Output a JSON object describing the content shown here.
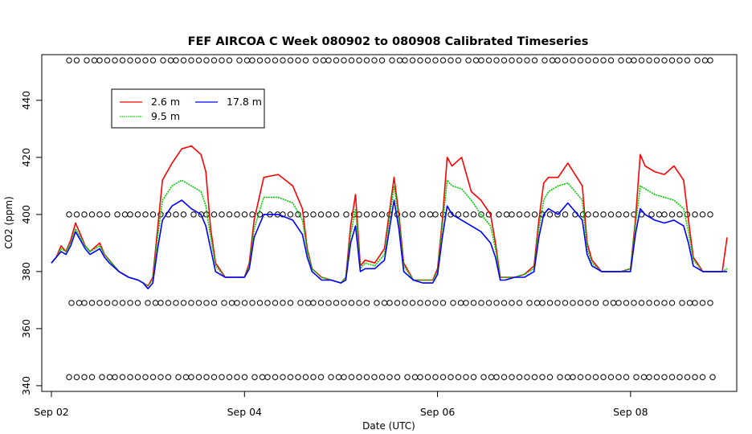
{
  "chart_data": {
    "type": "line",
    "title": "FEF AIRCOA C  Week 080902 to 080908  Calibrated Timeseries",
    "xlabel": "Date (UTC)",
    "ylabel": "CO2 (ppm)",
    "x_unit": "days",
    "xlim": [
      -0.1,
      7.1
    ],
    "ylim": [
      338,
      456
    ],
    "x_ticks": [
      {
        "value": 0,
        "label": "Sep 02"
      },
      {
        "value": 2,
        "label": "Sep 04"
      },
      {
        "value": 4,
        "label": "Sep 06"
      },
      {
        "value": 6,
        "label": "Sep 08"
      }
    ],
    "y_ticks": [
      340,
      360,
      380,
      400,
      420,
      440
    ],
    "legend_position": "top-left",
    "legend": [
      {
        "name": "2.6 m",
        "color": "#ff0000"
      },
      {
        "name": "9.5 m",
        "color": "#00cc00"
      },
      {
        "name": "17.8 m",
        "color": "#0000ff"
      }
    ],
    "series": [
      {
        "name": "2.6 m",
        "color": "#ff0000",
        "x": [
          0,
          0.05,
          0.1,
          0.15,
          0.2,
          0.25,
          0.3,
          0.35,
          0.4,
          0.5,
          0.55,
          0.6,
          0.7,
          0.8,
          0.9,
          0.95,
          1.0,
          1.05,
          1.1,
          1.15,
          1.25,
          1.35,
          1.45,
          1.55,
          1.6,
          1.65,
          1.7,
          1.8,
          1.9,
          2.0,
          2.05,
          2.1,
          2.2,
          2.35,
          2.5,
          2.6,
          2.65,
          2.7,
          2.8,
          2.9,
          3.0,
          3.05,
          3.1,
          3.15,
          3.2,
          3.25,
          3.35,
          3.45,
          3.55,
          3.6,
          3.65,
          3.75,
          3.85,
          3.95,
          4.0,
          4.05,
          4.1,
          4.15,
          4.25,
          4.35,
          4.45,
          4.55,
          4.6,
          4.65,
          4.7,
          4.8,
          4.9,
          5.0,
          5.05,
          5.1,
          5.15,
          5.25,
          5.35,
          5.5,
          5.55,
          5.6,
          5.7,
          5.8,
          5.9,
          6.0,
          6.05,
          6.1,
          6.15,
          6.25,
          6.35,
          6.45,
          6.55,
          6.6,
          6.65,
          6.75,
          6.85,
          6.95,
          7.0
        ],
        "y": [
          383,
          385,
          389,
          387,
          391,
          397,
          393,
          389,
          387,
          390,
          386,
          384,
          380,
          378,
          377,
          376,
          375,
          378,
          395,
          412,
          418,
          423,
          424,
          421,
          415,
          395,
          383,
          378,
          378,
          378,
          383,
          398,
          413,
          414,
          410,
          402,
          388,
          381,
          378,
          377,
          376,
          378,
          396,
          407,
          382,
          384,
          383,
          388,
          413,
          400,
          383,
          377,
          377,
          377,
          381,
          398,
          420,
          417,
          420,
          408,
          405,
          400,
          390,
          378,
          378,
          378,
          379,
          382,
          398,
          411,
          413,
          413,
          418,
          410,
          390,
          384,
          380,
          380,
          380,
          381,
          398,
          421,
          417,
          415,
          414,
          417,
          412,
          398,
          385,
          380,
          380,
          380,
          392
        ]
      },
      {
        "name": "9.5 m",
        "color": "#00cc00",
        "x": [
          0,
          0.05,
          0.1,
          0.15,
          0.2,
          0.25,
          0.3,
          0.35,
          0.4,
          0.5,
          0.55,
          0.6,
          0.7,
          0.8,
          0.9,
          0.95,
          1.0,
          1.05,
          1.1,
          1.15,
          1.25,
          1.35,
          1.45,
          1.55,
          1.6,
          1.65,
          1.7,
          1.8,
          1.9,
          2.0,
          2.05,
          2.1,
          2.2,
          2.35,
          2.5,
          2.6,
          2.65,
          2.7,
          2.8,
          2.9,
          3.0,
          3.05,
          3.1,
          3.15,
          3.2,
          3.25,
          3.35,
          3.45,
          3.55,
          3.6,
          3.65,
          3.75,
          3.85,
          3.95,
          4.0,
          4.05,
          4.1,
          4.15,
          4.25,
          4.35,
          4.45,
          4.55,
          4.6,
          4.65,
          4.7,
          4.8,
          4.9,
          5.0,
          5.05,
          5.1,
          5.15,
          5.25,
          5.35,
          5.5,
          5.55,
          5.6,
          5.7,
          5.8,
          5.9,
          6.0,
          6.05,
          6.1,
          6.15,
          6.25,
          6.35,
          6.45,
          6.55,
          6.6,
          6.65,
          6.75,
          6.85,
          6.95,
          7.0
        ],
        "y": [
          383,
          385,
          388,
          387,
          390,
          395,
          392,
          389,
          387,
          389,
          386,
          384,
          380,
          378,
          377,
          376,
          375,
          377,
          392,
          405,
          410,
          412,
          410,
          408,
          403,
          392,
          382,
          378,
          378,
          378,
          382,
          395,
          406,
          406,
          404,
          398,
          387,
          381,
          378,
          377,
          376,
          378,
          393,
          402,
          381,
          383,
          382,
          386,
          410,
          398,
          382,
          377,
          377,
          377,
          380,
          396,
          412,
          410,
          409,
          405,
          400,
          396,
          388,
          378,
          378,
          378,
          379,
          381,
          395,
          405,
          408,
          410,
          411,
          405,
          388,
          383,
          380,
          380,
          380,
          381,
          396,
          410,
          409,
          407,
          406,
          405,
          402,
          394,
          384,
          380,
          380,
          380,
          381
        ]
      },
      {
        "name": "17.8 m",
        "color": "#0000ff",
        "x": [
          0,
          0.05,
          0.1,
          0.15,
          0.2,
          0.25,
          0.3,
          0.35,
          0.4,
          0.5,
          0.55,
          0.6,
          0.7,
          0.8,
          0.9,
          0.95,
          1.0,
          1.05,
          1.1,
          1.15,
          1.25,
          1.35,
          1.45,
          1.55,
          1.6,
          1.65,
          1.7,
          1.8,
          1.9,
          2.0,
          2.05,
          2.1,
          2.2,
          2.35,
          2.5,
          2.6,
          2.65,
          2.7,
          2.8,
          2.9,
          3.0,
          3.05,
          3.1,
          3.15,
          3.2,
          3.25,
          3.35,
          3.45,
          3.55,
          3.6,
          3.65,
          3.75,
          3.85,
          3.95,
          4.0,
          4.05,
          4.1,
          4.15,
          4.25,
          4.35,
          4.45,
          4.55,
          4.6,
          4.65,
          4.7,
          4.8,
          4.9,
          5.0,
          5.05,
          5.1,
          5.15,
          5.25,
          5.35,
          5.5,
          5.55,
          5.6,
          5.7,
          5.8,
          5.9,
          6.0,
          6.05,
          6.1,
          6.15,
          6.25,
          6.35,
          6.45,
          6.55,
          6.6,
          6.65,
          6.75,
          6.85,
          6.95,
          7.0
        ],
        "y": [
          383,
          385,
          387,
          386,
          389,
          394,
          391,
          388,
          386,
          388,
          385,
          383,
          380,
          378,
          377,
          376,
          374,
          376,
          388,
          398,
          403,
          405,
          402,
          400,
          396,
          388,
          380,
          378,
          378,
          378,
          381,
          392,
          400,
          400,
          398,
          393,
          385,
          380,
          377,
          377,
          376,
          377,
          390,
          396,
          380,
          381,
          381,
          384,
          405,
          395,
          380,
          377,
          376,
          376,
          379,
          392,
          403,
          400,
          398,
          396,
          394,
          390,
          385,
          377,
          377,
          378,
          378,
          380,
          392,
          400,
          402,
          400,
          404,
          398,
          386,
          382,
          380,
          380,
          380,
          380,
          393,
          402,
          400,
          398,
          397,
          398,
          396,
          390,
          382,
          380,
          380,
          380,
          380
        ]
      }
    ]
  }
}
